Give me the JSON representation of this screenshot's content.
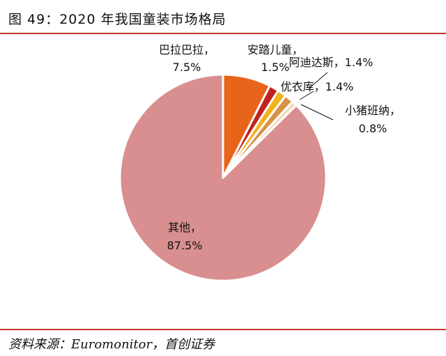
{
  "title": "图 49：2020 年我国童装市场格局",
  "source": "资料来源：Euromonitor，首创证券",
  "chart_data": {
    "type": "pie",
    "series": [
      {
        "name": "巴拉巴拉",
        "value": 7.5,
        "color": "#e8641a",
        "label_lines": [
          "巴拉巴拉，",
          "7.5%"
        ]
      },
      {
        "name": "安踏儿童",
        "value": 1.5,
        "color": "#c0241f",
        "label_lines": [
          "安踏儿童，",
          "1.5%"
        ]
      },
      {
        "name": "阿迪达斯",
        "value": 1.4,
        "color": "#f2b21c",
        "label_lines": [
          "阿迪达斯，1.4%"
        ]
      },
      {
        "name": "优衣库",
        "value": 1.4,
        "color": "#d9924a",
        "label_lines": [
          "优衣库，1.4%"
        ]
      },
      {
        "name": "小猪班纳",
        "value": 0.8,
        "color": "#f3d9b8",
        "label_lines": [
          "小猪班纳，",
          "0.8%"
        ]
      },
      {
        "name": "其他",
        "value": 87.5,
        "color": "#d98f8f",
        "label_lines": [
          "其他，",
          "87.5%"
        ]
      }
    ]
  }
}
